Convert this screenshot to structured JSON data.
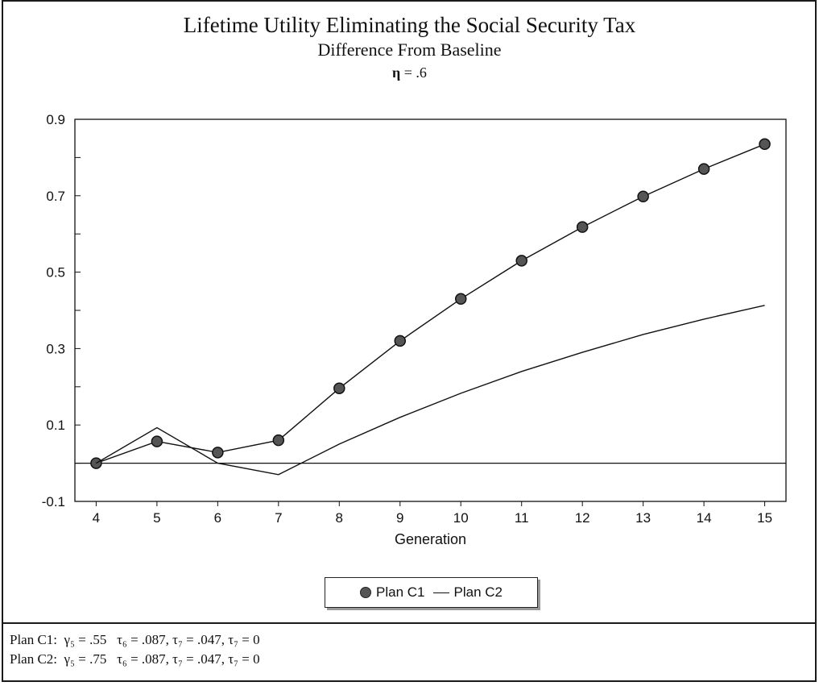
{
  "header": {
    "title": "Lifetime Utility Eliminating the Social Security Tax",
    "subtitle": "Difference From Baseline",
    "eta_symbol": "η",
    "eta_value": " = .6"
  },
  "chart_data": {
    "type": "line",
    "x": [
      4,
      5,
      6,
      7,
      8,
      9,
      10,
      11,
      12,
      13,
      14,
      15
    ],
    "xlabel": "Generation",
    "ylabel": "",
    "xlim": [
      3.65,
      15.35
    ],
    "ylim": [
      -0.1,
      0.9
    ],
    "yticks": [
      -0.1,
      0.1,
      0.3,
      0.5,
      0.7,
      0.9
    ],
    "ytick_labels": [
      "-0.1",
      "0.1",
      "0.3",
      "0.5",
      "0.7",
      "0.9"
    ],
    "xtick_labels": [
      "4",
      "5",
      "6",
      "7",
      "8",
      "9",
      "10",
      "11",
      "12",
      "13",
      "14",
      "15"
    ],
    "grid": false,
    "reference_line_y": 0,
    "series": [
      {
        "name": "Plan C1",
        "values": [
          0.0,
          0.057,
          0.028,
          0.06,
          0.196,
          0.32,
          0.43,
          0.53,
          0.618,
          0.698,
          0.77,
          0.835
        ],
        "marker": "circle",
        "color": "#111111"
      },
      {
        "name": "Plan C2",
        "values": [
          0.0,
          0.093,
          0.0,
          -0.03,
          0.05,
          0.12,
          0.183,
          0.24,
          0.29,
          0.337,
          0.377,
          0.413
        ],
        "marker": "none",
        "color": "#111111"
      }
    ]
  },
  "legend": {
    "c1_label": "Plan C1",
    "c2_label": "Plan C2"
  },
  "notes": {
    "line1_label": "Plan C1:",
    "line1_params": "γ₅ = .55   τ₆ = .087, τ₇ = .047, τ₇ = 0",
    "line2_label": "Plan C2:",
    "line2_params": "γ₅ = .75   τ₆ = .087, τ₇ = .047, τ₇ = 0"
  }
}
